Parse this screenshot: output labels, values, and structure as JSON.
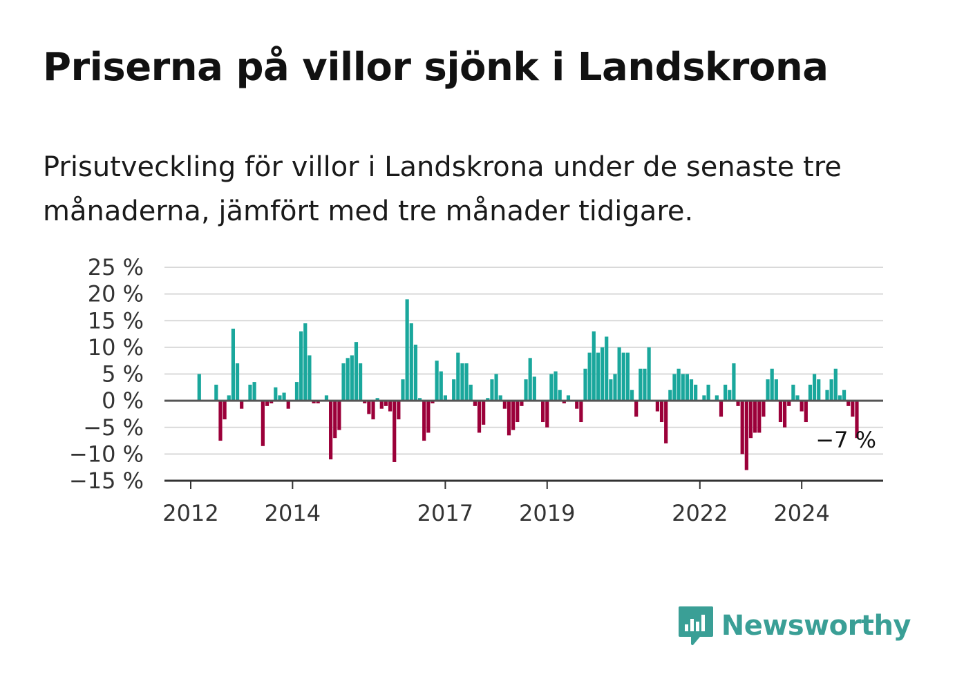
{
  "title": "Priserna på villor sjönk i Landskrona",
  "subtitle": "Prisutveckling för villor i Landskrona under de senaste tre månaderna, jämfört med tre månader tidigare.",
  "brand": "Newsworthy",
  "colors": {
    "positive": "#1aa79c",
    "negative": "#9b0039",
    "grid": "#d9d9d9",
    "zero_line": "#555555",
    "brand": "#3a9f96"
  },
  "chart_data": {
    "type": "bar",
    "title": "Priserna på villor sjönk i Landskrona",
    "subtitle": "Prisutveckling för villor i Landskrona under de senaste tre månaderna, jämfört med tre månader tidigare.",
    "xlabel": "",
    "ylabel": "",
    "unit": "%",
    "ylim": [
      -15,
      25
    ],
    "yticks": [
      25,
      20,
      15,
      10,
      5,
      0,
      -5,
      -10,
      -15
    ],
    "ytick_labels": [
      "25 %",
      "20 %",
      "15 %",
      "10 %",
      "5 %",
      "0 %",
      "−5 %",
      "−10 %",
      "−15 %"
    ],
    "xticks": [
      {
        "label": "2012",
        "year": 2012
      },
      {
        "label": "2014",
        "year": 2014
      },
      {
        "label": "2017",
        "year": 2017
      },
      {
        "label": "2019",
        "year": 2019
      },
      {
        "label": "2022",
        "year": 2022
      },
      {
        "label": "2024",
        "year": 2024
      }
    ],
    "grid": true,
    "first_month": "2012-01",
    "values": [
      0,
      0,
      5,
      0,
      0,
      0,
      3,
      -7.5,
      -3.5,
      1,
      13.5,
      7,
      -1.5,
      0,
      3,
      3.5,
      0,
      -8.5,
      -1,
      -0.5,
      2.5,
      1,
      1.5,
      -1.5,
      0,
      3.5,
      13,
      14.5,
      8.5,
      -0.5,
      -0.5,
      0,
      1,
      -11,
      -7,
      -5.5,
      7,
      8,
      8.5,
      11,
      7,
      -0.5,
      -2.5,
      -3.5,
      0.5,
      -1.5,
      -1,
      -2,
      -11.5,
      -3.5,
      4,
      19,
      14.5,
      10.5,
      0.5,
      -7.5,
      -6,
      -0.5,
      7.5,
      5.5,
      1,
      0,
      4,
      9,
      7,
      7,
      3,
      -1,
      -6,
      -4.5,
      0.5,
      4,
      5,
      1,
      -1.5,
      -6.5,
      -5.5,
      -4,
      -1,
      4,
      8,
      4.5,
      0,
      -4,
      -5,
      5,
      5.5,
      2,
      -0.5,
      1,
      0,
      -1.5,
      -4,
      6,
      9,
      13,
      9,
      10,
      12,
      4,
      5,
      10,
      9,
      9,
      2,
      -3,
      6,
      6,
      10,
      0,
      -2,
      -4,
      -8,
      2,
      5,
      6,
      5,
      5,
      4,
      3,
      0,
      1,
      3,
      0,
      1,
      -3,
      3,
      2,
      7,
      -1,
      -10,
      -13,
      -7,
      -6,
      -6,
      -3,
      4,
      6,
      4,
      -4,
      -5,
      -1,
      3,
      1,
      -2,
      -4,
      3,
      5,
      4,
      0,
      2,
      4,
      6,
      1,
      2,
      -1,
      -3,
      -7
    ],
    "annotation": {
      "label": "−7 %",
      "value": -7
    }
  }
}
